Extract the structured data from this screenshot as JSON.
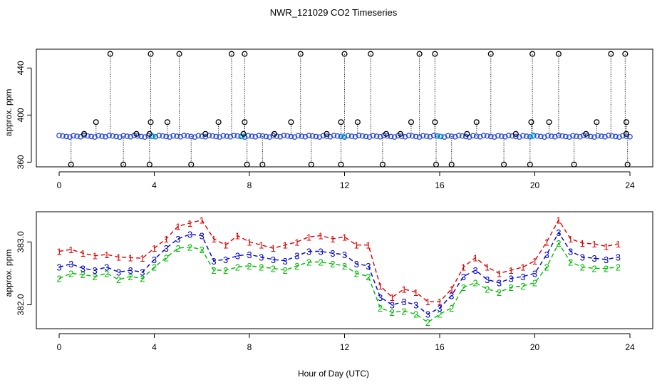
{
  "title": "NWR_121029  CO2 Timeseries",
  "xlabel": "Hour of Day (UTC)",
  "colors": {
    "frame": "#000000",
    "series1": "#dd0000",
    "series2": "#00bb00",
    "series3": "#0000cc",
    "dots": "#2244dd",
    "dots_accent": "#00cccc"
  },
  "chart_data": [
    {
      "type": "scatter",
      "panel": "top",
      "ylabel": "approx. ppm",
      "xlim": [
        0,
        24
      ],
      "ylim": [
        356,
        456
      ],
      "xticks": [
        "0",
        "4",
        "8",
        "12",
        "16",
        "20",
        "24"
      ],
      "yticks": [
        "360",
        "400",
        "440"
      ],
      "baseline": 382,
      "spikes_high_x": [
        2.15,
        3.85,
        5.05,
        7.25,
        7.8,
        10.15,
        12.0,
        13.1,
        15.15,
        15.8,
        18.15,
        19.9,
        21.0,
        23.2,
        23.8
      ],
      "spikes_high_y": 452,
      "spikes_mid_x": [
        1.55,
        3.85,
        4.55,
        6.7,
        7.8,
        9.75,
        11.85,
        12.55,
        14.8,
        15.8,
        17.55,
        19.85,
        20.6,
        22.6,
        23.85
      ],
      "spikes_mid_y": 394,
      "spikes_low_x": [
        0.5,
        2.7,
        3.8,
        5.55,
        7.9,
        8.55,
        10.6,
        11.85,
        13.6,
        15.85,
        16.5,
        18.7,
        19.8,
        21.65,
        23.9
      ],
      "spikes_low_y": 358,
      "near_x": [
        1.05,
        3.25,
        3.8,
        6.15,
        7.75,
        9.05,
        11.25,
        13.75,
        14.35,
        17.15,
        19.2,
        22.15,
        23.85
      ],
      "near_y": 384
    },
    {
      "type": "line",
      "panel": "bottom",
      "ylabel": "approx. ppm",
      "xlim": [
        0,
        24
      ],
      "ylim": [
        381.62,
        383.48
      ],
      "xticks": [
        "0",
        "4",
        "8",
        "12",
        "16",
        "20",
        "24"
      ],
      "yticks": [
        "382.0",
        "383.0"
      ],
      "series": [
        {
          "name": "1",
          "label": "1",
          "x": [
            0.0,
            0.5,
            1.0,
            1.5,
            2.0,
            2.5,
            3.0,
            3.5,
            4.0,
            4.5,
            5.0,
            5.5,
            6.0,
            6.5,
            7.0,
            7.5,
            8.0,
            8.5,
            9.0,
            9.5,
            10.0,
            10.5,
            11.0,
            11.5,
            12.0,
            12.5,
            13.0,
            13.5,
            14.0,
            14.5,
            15.0,
            15.5,
            16.0,
            16.5,
            17.0,
            17.5,
            18.0,
            18.5,
            19.0,
            19.5,
            20.0,
            20.5,
            21.0,
            21.5,
            22.0,
            22.5,
            23.0,
            23.5
          ],
          "y": [
            382.85,
            382.88,
            382.82,
            382.78,
            382.8,
            382.76,
            382.75,
            382.74,
            382.9,
            383.05,
            383.25,
            383.3,
            383.35,
            383.05,
            382.95,
            383.1,
            383.0,
            382.95,
            382.9,
            382.95,
            383.0,
            383.08,
            383.1,
            383.05,
            383.08,
            382.95,
            382.95,
            382.3,
            382.12,
            382.25,
            382.2,
            382.05,
            382.05,
            382.25,
            382.6,
            382.75,
            382.6,
            382.5,
            382.55,
            382.6,
            382.7,
            383.0,
            383.35,
            383.05,
            382.98,
            382.97,
            382.93,
            382.97
          ]
        },
        {
          "name": "2",
          "label": "2",
          "x": [
            0.0,
            0.5,
            1.0,
            1.5,
            2.0,
            2.5,
            3.0,
            3.5,
            4.0,
            4.5,
            5.0,
            5.5,
            6.0,
            6.5,
            7.0,
            7.5,
            8.0,
            8.5,
            9.0,
            9.5,
            10.0,
            10.5,
            11.0,
            11.5,
            12.0,
            12.5,
            13.0,
            13.5,
            14.0,
            14.5,
            15.0,
            15.5,
            16.0,
            16.5,
            17.0,
            17.5,
            18.0,
            18.5,
            19.0,
            19.5,
            20.0,
            20.5,
            21.0,
            21.5,
            22.0,
            22.5,
            23.0,
            23.5
          ],
          "y": [
            382.42,
            382.5,
            382.48,
            382.45,
            382.5,
            382.4,
            382.45,
            382.42,
            382.6,
            382.75,
            382.9,
            382.92,
            382.88,
            382.55,
            382.55,
            382.6,
            382.62,
            382.6,
            382.58,
            382.55,
            382.62,
            382.68,
            382.68,
            382.65,
            382.62,
            382.5,
            382.45,
            381.95,
            381.88,
            381.9,
            381.85,
            381.72,
            381.85,
            381.95,
            382.28,
            382.35,
            382.25,
            382.2,
            382.28,
            382.3,
            382.35,
            382.6,
            382.98,
            382.68,
            382.6,
            382.58,
            382.58,
            382.6
          ]
        },
        {
          "name": "3",
          "label": "3",
          "x": [
            0.0,
            0.5,
            1.0,
            1.5,
            2.0,
            2.5,
            3.0,
            3.5,
            4.0,
            4.5,
            5.0,
            5.5,
            6.0,
            6.5,
            7.0,
            7.5,
            8.0,
            8.5,
            9.0,
            9.5,
            10.0,
            10.5,
            11.0,
            11.5,
            12.0,
            12.5,
            13.0,
            13.5,
            14.0,
            14.5,
            15.0,
            15.5,
            16.0,
            16.5,
            17.0,
            17.5,
            18.0,
            18.5,
            19.0,
            19.5,
            20.0,
            20.5,
            21.0,
            21.5,
            22.0,
            22.5,
            23.0,
            23.5
          ],
          "y": [
            382.6,
            382.65,
            382.58,
            382.55,
            382.6,
            382.52,
            382.55,
            382.52,
            382.72,
            382.9,
            383.05,
            383.12,
            383.1,
            382.7,
            382.72,
            382.78,
            382.8,
            382.76,
            382.72,
            382.7,
            382.78,
            382.85,
            382.85,
            382.82,
            382.8,
            382.65,
            382.62,
            382.12,
            382.0,
            382.05,
            382.0,
            381.85,
            381.95,
            382.15,
            382.45,
            382.55,
            382.4,
            382.35,
            382.42,
            382.45,
            382.5,
            382.8,
            383.15,
            382.85,
            382.76,
            382.74,
            382.72,
            382.76
          ]
        }
      ]
    }
  ]
}
